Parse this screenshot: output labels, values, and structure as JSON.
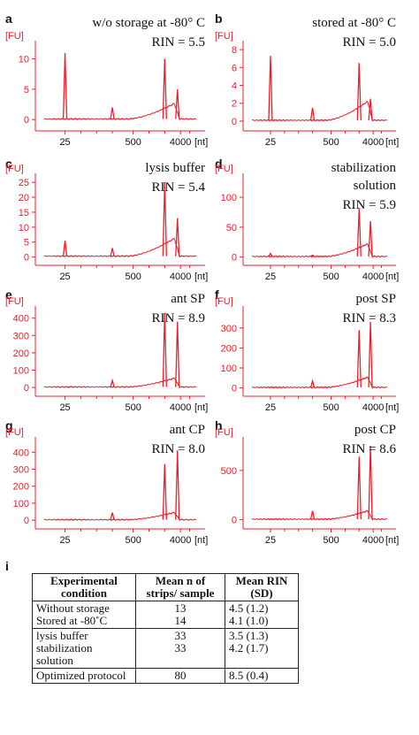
{
  "chart_data": [
    {
      "panel": "a",
      "type": "line",
      "title": "w/o storage at -80° C",
      "rin": "RIN = 5.5",
      "ylabel": "[FU]",
      "xlabel": "[nt]",
      "yticks": [
        0,
        5,
        10
      ],
      "ylim": [
        -1,
        13
      ],
      "xticks": [
        "25",
        "500",
        "4000"
      ],
      "series": [
        {
          "peaks": [
            {
              "x": 25,
              "h": 11
            },
            {
              "x": 200,
              "h": 2
            },
            {
              "x": 2000,
              "h": 10
            },
            {
              "x": 3500,
              "h": 5
            }
          ],
          "baseline": 0.1,
          "hump": 3
        }
      ]
    },
    {
      "panel": "b",
      "type": "line",
      "title": "stored at -80° C",
      "rin": "RIN = 5.0",
      "ylabel": "[FU]",
      "xlabel": "[nt]",
      "yticks": [
        0,
        2,
        4,
        6,
        8
      ],
      "ylim": [
        -0.5,
        9
      ],
      "xticks": [
        "25",
        "500",
        "4000"
      ],
      "series": [
        {
          "peaks": [
            {
              "x": 25,
              "h": 7.3
            },
            {
              "x": 200,
              "h": 1.5
            },
            {
              "x": 2000,
              "h": 6.5
            },
            {
              "x": 3500,
              "h": 2.5
            }
          ],
          "baseline": 0.1,
          "hump": 2.5
        }
      ]
    },
    {
      "panel": "c",
      "type": "line",
      "title": "lysis buffer",
      "rin": "RIN = 5.4",
      "ylabel": "[FU]",
      "xlabel": "[nt]",
      "yticks": [
        0,
        5,
        10,
        15,
        20,
        25
      ],
      "ylim": [
        -1,
        28
      ],
      "xticks": [
        "25",
        "500",
        "4000"
      ],
      "series": [
        {
          "peaks": [
            {
              "x": 25,
              "h": 5.5
            },
            {
              "x": 200,
              "h": 3
            },
            {
              "x": 2000,
              "h": 25
            },
            {
              "x": 3500,
              "h": 13
            }
          ],
          "baseline": 0.3,
          "hump": 7
        }
      ]
    },
    {
      "panel": "d",
      "type": "line",
      "title": "stabilization solution",
      "title_lines": [
        "stabilization",
        "solution"
      ],
      "rin": "RIN = 5.9",
      "ylabel": "[FU]",
      "xlabel": "[nt]",
      "yticks": [
        0,
        50,
        100
      ],
      "ylim": [
        -5,
        140
      ],
      "xticks": [
        "25",
        "500",
        "4000"
      ],
      "series": [
        {
          "peaks": [
            {
              "x": 25,
              "h": 6
            },
            {
              "x": 200,
              "h": 3
            },
            {
              "x": 2000,
              "h": 82
            },
            {
              "x": 3500,
              "h": 60
            }
          ],
          "baseline": 1,
          "hump": 25
        }
      ]
    },
    {
      "panel": "e",
      "type": "line",
      "title": "ant SP",
      "rin": "RIN = 8.9",
      "ylabel": "[FU]",
      "xlabel": "[nt]",
      "yticks": [
        0,
        100,
        200,
        300,
        400
      ],
      "ylim": [
        -20,
        470
      ],
      "xticks": [
        "25",
        "500",
        "4000"
      ],
      "series": [
        {
          "peaks": [
            {
              "x": 200,
              "h": 40
            },
            {
              "x": 2000,
              "h": 430
            },
            {
              "x": 3500,
              "h": 380
            }
          ],
          "baseline": 3,
          "hump": 60
        }
      ]
    },
    {
      "panel": "f",
      "type": "line",
      "title": "post SP",
      "rin": "RIN = 8.3",
      "ylabel": "[FU]",
      "xlabel": "[nt]",
      "yticks": [
        0,
        100,
        200,
        300
      ],
      "ylim": [
        -15,
        410
      ],
      "xticks": [
        "25",
        "500",
        "4000"
      ],
      "series": [
        {
          "peaks": [
            {
              "x": 200,
              "h": 35
            },
            {
              "x": 2000,
              "h": 290
            },
            {
              "x": 3500,
              "h": 330
            }
          ],
          "baseline": 3,
          "hump": 60
        }
      ]
    },
    {
      "panel": "g",
      "type": "line",
      "title": "ant CP",
      "rin": "RIN = 8.0",
      "ylabel": "[FU]",
      "xlabel": "[nt]",
      "yticks": [
        0,
        100,
        200,
        300,
        400
      ],
      "ylim": [
        -20,
        490
      ],
      "xticks": [
        "25",
        "500",
        "4000"
      ],
      "series": [
        {
          "peaks": [
            {
              "x": 200,
              "h": 45
            },
            {
              "x": 2000,
              "h": 330
            },
            {
              "x": 3500,
              "h": 410
            }
          ],
          "baseline": 3,
          "hump": 50
        }
      ]
    },
    {
      "panel": "h",
      "type": "line",
      "title": "post CP",
      "rin": "RIN = 8.6",
      "ylabel": "[FU]",
      "xlabel": "[nt]",
      "yticks": [
        0,
        500
      ],
      "ylim": [
        -40,
        840
      ],
      "xticks": [
        "25",
        "500",
        "4000"
      ],
      "series": [
        {
          "peaks": [
            {
              "x": 200,
              "h": 90
            },
            {
              "x": 2000,
              "h": 640
            },
            {
              "x": 3500,
              "h": 750
            }
          ],
          "baseline": 5,
          "hump": 100
        }
      ]
    },
    {
      "panel": "i",
      "type": "table",
      "headers": [
        "Experimental condition",
        "Mean n of strips/ sample",
        "Mean RIN (SD)"
      ],
      "groups": [
        [
          [
            "Without storage",
            "13",
            "4.5 (1.2)"
          ],
          [
            "Stored at -80˚C",
            "14",
            "4.1 (1.0)"
          ]
        ],
        [
          [
            "lysis buffer",
            "33",
            "3.5 (1.3)"
          ],
          [
            "stabilization solution",
            "33",
            "4.2 (1.7)"
          ]
        ],
        [
          [
            "Optimized protocol",
            "80",
            "8.5 (0.4)"
          ]
        ]
      ]
    }
  ],
  "colors": {
    "trace": "#e8202a",
    "axis": "#e8202a",
    "text": "#111111"
  }
}
